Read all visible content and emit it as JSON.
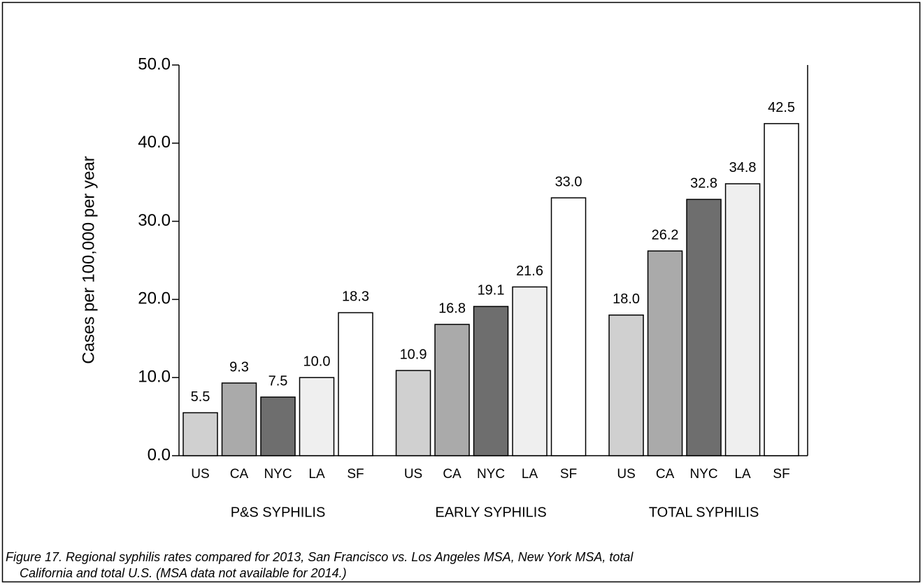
{
  "chart_data": {
    "type": "bar",
    "ylabel": "Cases per 100,000 per year",
    "categories": [
      "P&S SYPHILIS",
      "EARLY SYPHILIS",
      "TOTAL SYPHILIS"
    ],
    "series": [
      {
        "name": "US",
        "color": "#d0d0d0",
        "values": [
          5.5,
          10.9,
          18.0
        ],
        "value_labels": [
          "5.5",
          "10.9",
          "18.0"
        ]
      },
      {
        "name": "CA",
        "color": "#aaaaaa",
        "values": [
          9.3,
          16.8,
          26.2
        ],
        "value_labels": [
          "9.3",
          "16.8",
          "26.2"
        ]
      },
      {
        "name": "NYC",
        "color": "#6e6e6e",
        "values": [
          7.5,
          19.1,
          32.8
        ],
        "value_labels": [
          "7.5",
          "19.1",
          "32.8"
        ]
      },
      {
        "name": "LA",
        "color": "#efefef",
        "values": [
          10.0,
          21.6,
          34.8
        ],
        "value_labels": [
          "10.0",
          "21.6",
          "34.8"
        ]
      },
      {
        "name": "SF",
        "color": "#ffffff",
        "values": [
          18.3,
          33.0,
          42.5
        ],
        "value_labels": [
          "18.3",
          "33.0",
          "42.5"
        ]
      }
    ],
    "ylim": [
      0,
      50
    ],
    "yticks": [
      {
        "value": 0,
        "label": "0.0"
      },
      {
        "value": 10,
        "label": "10.0"
      },
      {
        "value": 20,
        "label": "20.0"
      },
      {
        "value": 30,
        "label": "30.0"
      },
      {
        "value": 40,
        "label": "40.0"
      },
      {
        "value": 50,
        "label": "50.0"
      }
    ],
    "caption": [
      "Figure 17.  Regional syphilis rates compared for 2013, San Francisco vs. Los Angeles MSA, New York MSA, total",
      "California and total U.S.  (MSA data not available for 2014.)"
    ]
  }
}
